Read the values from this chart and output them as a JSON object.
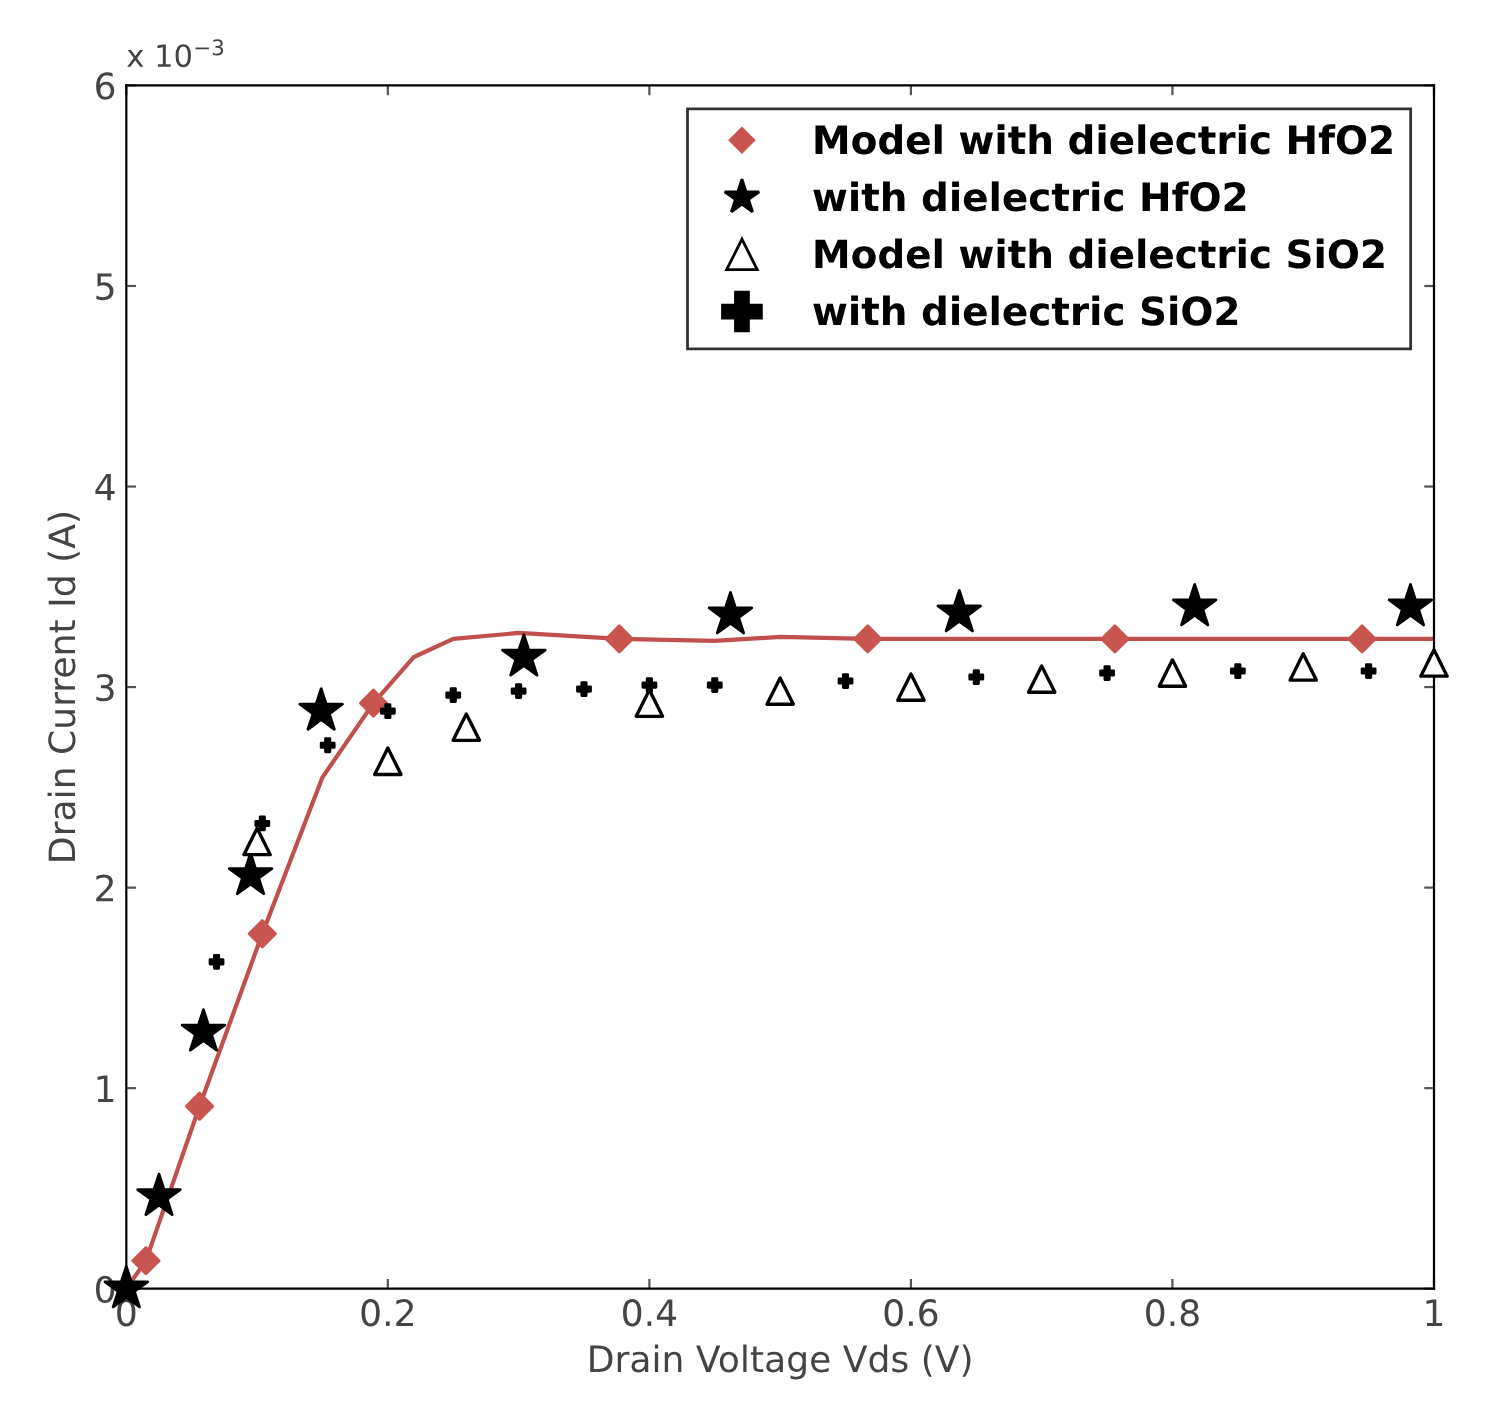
{
  "chart_data": {
    "type": "scatter",
    "xlabel": "Drain Voltage Vds (V)",
    "ylabel": "Drain Current Id (A)",
    "annotations": [
      "x 10$^{−3}$"
    ],
    "xlim": [
      0,
      1
    ],
    "ylim": [
      0,
      6
    ],
    "xticks": [
      0,
      0.2,
      0.4,
      0.6,
      0.8,
      1
    ],
    "yticks": [
      0,
      1,
      2,
      3,
      4,
      5,
      6
    ],
    "grid": false,
    "legend": "top right",
    "series": [
      {
        "type": "line",
        "color": "#c0504d",
        "marker": "none",
        "x": [
          0,
          0.015,
          0.056,
          0.104,
          0.15,
          0.189,
          0.22,
          0.25,
          0.3,
          0.377,
          0.45,
          0.5,
          0.567,
          0.756,
          0.945,
          1
        ],
        "values": [
          0,
          0.14,
          0.91,
          1.77,
          2.55,
          2.92,
          3.15,
          3.24,
          3.27,
          3.24,
          3.23,
          3.25,
          3.24,
          3.24,
          3.24,
          3.24
        ]
      },
      {
        "name": "Model with dielectric HfO2",
        "color": "#c8554f",
        "marker": "diamond",
        "x": [
          0.015,
          0.056,
          0.104,
          0.189,
          0.377,
          0.567,
          0.756,
          0.945
        ],
        "values": [
          0.14,
          0.91,
          1.77,
          2.92,
          3.24,
          3.24,
          3.24,
          3.24
        ]
      },
      {
        "name": "with dielectric HfO2",
        "color": "#000000",
        "marker": "star",
        "x": [
          0,
          0.025,
          0.059,
          0.095,
          0.149,
          0.304,
          0.462,
          0.637,
          0.817,
          0.982
        ],
        "values": [
          0,
          0.46,
          1.28,
          2.06,
          2.88,
          3.15,
          3.36,
          3.37,
          3.4,
          3.4
        ]
      },
      {
        "name": "Model with dielectric SiO2",
        "color": "#000000",
        "marker": "triangle",
        "x": [
          0.1,
          0.2,
          0.26,
          0.4,
          0.5,
          0.6,
          0.7,
          0.8,
          0.9,
          1
        ],
        "values": [
          2.23,
          2.63,
          2.8,
          2.92,
          2.98,
          3.0,
          3.04,
          3.07,
          3.1,
          3.12
        ]
      },
      {
        "name": "with dielectric SiO2",
        "color": "#000000",
        "marker": "cross",
        "x": [
          0.069,
          0.104,
          0.154,
          0.2,
          0.25,
          0.3,
          0.35,
          0.4,
          0.45,
          0.55,
          0.65,
          0.75,
          0.85,
          0.95
        ],
        "values": [
          1.63,
          2.32,
          2.71,
          2.88,
          2.96,
          2.98,
          2.99,
          3.01,
          3.01,
          3.03,
          3.05,
          3.07,
          3.08,
          3.08
        ]
      }
    ]
  }
}
